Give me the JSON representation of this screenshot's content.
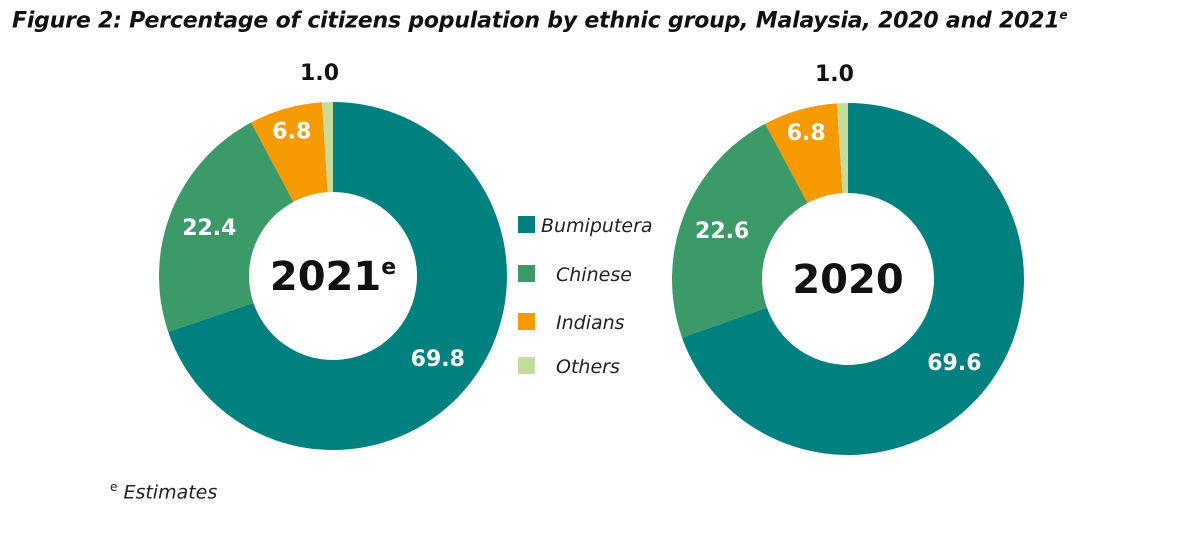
{
  "title": {
    "text": "Figure 2: Percentage of citizens population by ethnic group, Malaysia, 2020 and 2021",
    "sup": "e"
  },
  "footnote": {
    "sup": "e",
    "text": "Estimates"
  },
  "colors": {
    "Bumiputera": "#00807f",
    "Chinese": "#3b9a67",
    "Indians": "#f59a00",
    "Others": "#c4dc9c"
  },
  "chart_data": [
    {
      "type": "pie",
      "center_label": "2021",
      "center_sup": "e",
      "categories": [
        "Bumiputera",
        "Chinese",
        "Indians",
        "Others"
      ],
      "values": [
        69.8,
        22.4,
        6.8,
        1.0
      ],
      "labels": [
        "69.8",
        "22.4",
        "6.8",
        "1.0"
      ]
    },
    {
      "type": "pie",
      "center_label": "2020",
      "center_sup": "",
      "categories": [
        "Bumiputera",
        "Chinese",
        "Indians",
        "Others"
      ],
      "values": [
        69.6,
        22.6,
        6.8,
        1.0
      ],
      "labels": [
        "69.6",
        "22.6",
        "6.8",
        "1.0"
      ]
    }
  ],
  "legend": {
    "items": [
      "Bumiputera",
      "Chinese",
      "Indians",
      "Others"
    ],
    "placement": "center"
  }
}
